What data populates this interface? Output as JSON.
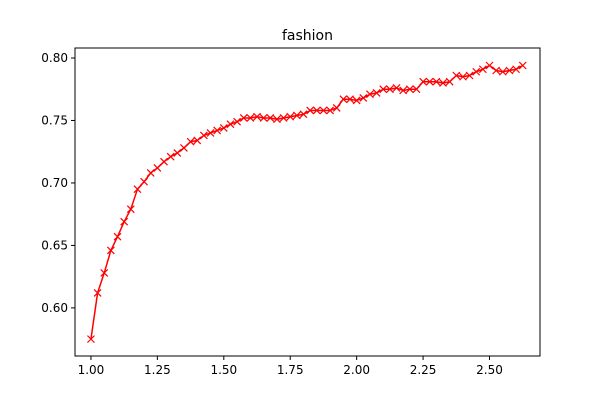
{
  "chart_data": {
    "type": "line",
    "title": "fashion",
    "xlabel": "",
    "ylabel": "",
    "xlim": [
      0.94,
      2.69
    ],
    "ylim": [
      0.5615,
      0.808
    ],
    "x_ticks": [
      1.0,
      1.25,
      1.5,
      1.75,
      2.0,
      2.25,
      2.5
    ],
    "x_tick_labels": [
      "1.00",
      "1.25",
      "1.50",
      "1.75",
      "2.00",
      "2.25",
      "2.50"
    ],
    "y_ticks": [
      0.6,
      0.65,
      0.7,
      0.75,
      0.8
    ],
    "y_tick_labels": [
      "0.60",
      "0.65",
      "0.70",
      "0.75",
      "0.80"
    ],
    "grid": false,
    "legend": "none",
    "series": [
      {
        "color": "#ff0000",
        "marker": "x",
        "x": [
          1.0,
          1.025,
          1.05,
          1.075,
          1.1,
          1.125,
          1.15,
          1.175,
          1.2,
          1.225,
          1.25,
          1.275,
          1.3,
          1.325,
          1.35,
          1.375,
          1.4,
          1.425,
          1.45,
          1.475,
          1.5,
          1.525,
          1.55,
          1.575,
          1.6,
          1.625,
          1.65,
          1.675,
          1.7,
          1.725,
          1.75,
          1.775,
          1.8,
          1.825,
          1.85,
          1.875,
          1.9,
          1.925,
          1.95,
          1.975,
          2.0,
          2.025,
          2.05,
          2.075,
          2.1,
          2.125,
          2.15,
          2.175,
          2.2,
          2.225,
          2.25,
          2.275,
          2.3,
          2.325,
          2.35,
          2.375,
          2.4,
          2.425,
          2.45,
          2.475,
          2.5,
          2.525,
          2.55,
          2.575,
          2.6,
          2.625
        ],
        "y": [
          0.575,
          0.612,
          0.628,
          0.646,
          0.657,
          0.669,
          0.679,
          0.695,
          0.701,
          0.708,
          0.712,
          0.717,
          0.721,
          0.724,
          0.728,
          0.733,
          0.734,
          0.738,
          0.74,
          0.742,
          0.744,
          0.747,
          0.749,
          0.752,
          0.752,
          0.753,
          0.752,
          0.752,
          0.751,
          0.752,
          0.753,
          0.754,
          0.755,
          0.758,
          0.758,
          0.758,
          0.758,
          0.76,
          0.767,
          0.767,
          0.766,
          0.768,
          0.771,
          0.772,
          0.775,
          0.775,
          0.776,
          0.774,
          0.775,
          0.775,
          0.781,
          0.781,
          0.781,
          0.78,
          0.781,
          0.786,
          0.785,
          0.786,
          0.789,
          0.791,
          0.794,
          0.79,
          0.789,
          0.79,
          0.791,
          0.794
        ]
      }
    ]
  }
}
